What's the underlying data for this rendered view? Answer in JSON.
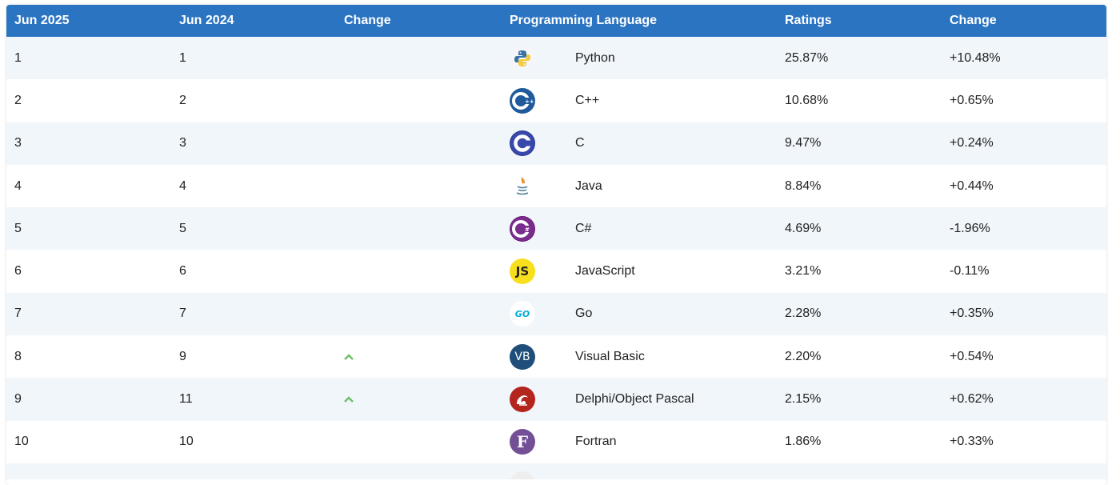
{
  "headers": {
    "col1": "Jun 2025",
    "col2": "Jun 2024",
    "col3": "Change",
    "col4": "Programming Language",
    "col5": "Ratings",
    "col6": "Change"
  },
  "rows": [
    {
      "rank_now": "1",
      "rank_prev": "1",
      "change": "",
      "language": "Python",
      "rating": "25.87%",
      "delta": "+10.48%",
      "logo_icon": "python-icon"
    },
    {
      "rank_now": "2",
      "rank_prev": "2",
      "change": "",
      "language": "C++",
      "rating": "10.68%",
      "delta": "+0.65%",
      "logo_icon": "cplusplus-icon"
    },
    {
      "rank_now": "3",
      "rank_prev": "3",
      "change": "",
      "language": "C",
      "rating": "9.47%",
      "delta": "+0.24%",
      "logo_icon": "c-icon"
    },
    {
      "rank_now": "4",
      "rank_prev": "4",
      "change": "",
      "language": "Java",
      "rating": "8.84%",
      "delta": "+0.44%",
      "logo_icon": "java-icon"
    },
    {
      "rank_now": "5",
      "rank_prev": "5",
      "change": "",
      "language": "C#",
      "rating": "4.69%",
      "delta": "-1.96%",
      "logo_icon": "csharp-icon"
    },
    {
      "rank_now": "6",
      "rank_prev": "6",
      "change": "",
      "language": "JavaScript",
      "rating": "3.21%",
      "delta": "-0.11%",
      "logo_icon": "javascript-icon"
    },
    {
      "rank_now": "7",
      "rank_prev": "7",
      "change": "",
      "language": "Go",
      "rating": "2.28%",
      "delta": "+0.35%",
      "logo_icon": "go-icon"
    },
    {
      "rank_now": "8",
      "rank_prev": "9",
      "change": "up",
      "language": "Visual Basic",
      "rating": "2.20%",
      "delta": "+0.54%",
      "logo_icon": "visual-basic-icon"
    },
    {
      "rank_now": "9",
      "rank_prev": "11",
      "change": "up",
      "language": "Delphi/Object Pascal",
      "rating": "2.15%",
      "delta": "+0.62%",
      "logo_icon": "delphi-icon"
    },
    {
      "rank_now": "10",
      "rank_prev": "10",
      "change": "",
      "language": "Fortran",
      "rating": "1.86%",
      "delta": "+0.33%",
      "logo_icon": "fortran-icon"
    }
  ],
  "logo_text": {
    "javascript": "JS",
    "go": "GO",
    "visual_basic": "VB",
    "fortran": "F"
  },
  "colors": {
    "header_bg": "#2b74c1",
    "stripe": "#f1f6fb",
    "up_arrow": "#6cbf6c"
  }
}
